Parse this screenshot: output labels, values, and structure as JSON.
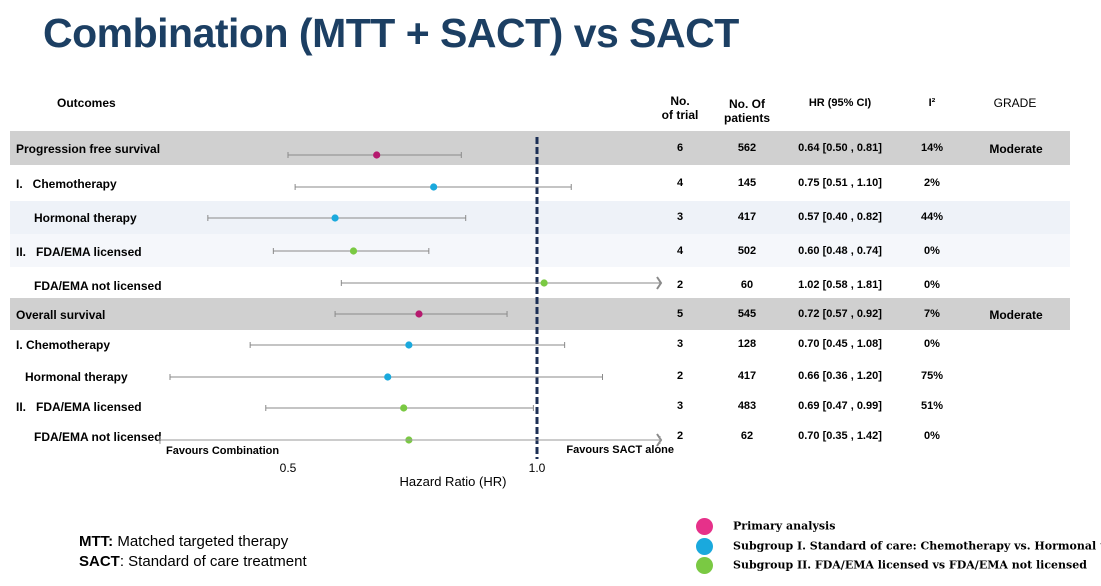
{
  "title": "Combination (MTT + SACT) vs SACT",
  "headers": {
    "outcomes": "Outcomes",
    "trials": [
      "No.",
      "of trial"
    ],
    "patients": [
      "No. Of",
      "patients"
    ],
    "hr": "HR (95% CI)",
    "i2": "I²",
    "grade": "GRADE"
  },
  "colors": {
    "primary": "#b5196e",
    "subgroup1": "#1aa9dd",
    "subgroup2": "#7ac943",
    "band_grey": "#d0d0d0",
    "band_light": "#eef2f8",
    "title": "#1c3f63",
    "ref_line": "#1c2f55"
  },
  "chart_data": {
    "type": "forest",
    "xlabel": "Hazard Ratio (HR)",
    "ref_value": 1.0,
    "tick_labels": [
      "0.5",
      "1.0"
    ],
    "favours_left": "Favours Combination",
    "favours_right": "Favours SACT alone",
    "rows": [
      {
        "label": "Progression free survival",
        "group": "primary",
        "hr": 0.64,
        "lo": 0.5,
        "hi": 0.81,
        "trials": "6",
        "patients": "562",
        "ci_text": "0.64 [0.50 , 0.81]",
        "i2": "14%",
        "grade": "Moderate"
      },
      {
        "label": "I.   Chemotherapy",
        "group": "subgroup1",
        "hr": 0.75,
        "lo": 0.51,
        "hi": 1.1,
        "trials": "4",
        "patients": "145",
        "ci_text": "0.75 [0.51 , 1.10]",
        "i2": "2%",
        "grade": ""
      },
      {
        "label": "Hormonal therapy",
        "group": "subgroup1",
        "hr": 0.57,
        "lo": 0.4,
        "hi": 0.82,
        "trials": "3",
        "patients": "417",
        "ci_text": "0.57 [0.40 , 0.82]",
        "i2": "44%",
        "grade": ""
      },
      {
        "label": "II.   FDA/EMA licensed",
        "group": "subgroup2",
        "hr": 0.6,
        "lo": 0.48,
        "hi": 0.74,
        "trials": "4",
        "patients": "502",
        "ci_text": "0.60 [0.48 , 0.74]",
        "i2": "0%",
        "grade": ""
      },
      {
        "label": "FDA/EMA not licensed",
        "group": "subgroup2",
        "hr": 1.02,
        "lo": 0.58,
        "hi": 1.81,
        "trials": "2",
        "patients": "60",
        "ci_text": "1.02 [0.58 , 1.81]",
        "i2": "0%",
        "grade": ""
      },
      {
        "label": "Overall survival",
        "group": "primary",
        "hr": 0.72,
        "lo": 0.57,
        "hi": 0.92,
        "trials": "5",
        "patients": "545",
        "ci_text": "0.72 [0.57 , 0.92]",
        "i2": "7%",
        "grade": "Moderate"
      },
      {
        "label": "I. Chemotherapy",
        "group": "subgroup1",
        "hr": 0.7,
        "lo": 0.45,
        "hi": 1.08,
        "trials": "3",
        "patients": "128",
        "ci_text": "0.70 [0.45 , 1.08]",
        "i2": "0%",
        "grade": ""
      },
      {
        "label": "Hormonal therapy",
        "group": "subgroup1",
        "hr": 0.66,
        "lo": 0.36,
        "hi": 1.2,
        "trials": "2",
        "patients": "417",
        "ci_text": "0.66 [0.36 , 1.20]",
        "i2": "75%",
        "grade": ""
      },
      {
        "label": "II.   FDA/EMA licensed",
        "group": "subgroup2",
        "hr": 0.69,
        "lo": 0.47,
        "hi": 0.99,
        "trials": "3",
        "patients": "483",
        "ci_text": "0.69 [0.47 , 0.99]",
        "i2": "51%",
        "grade": ""
      },
      {
        "label": "FDA/EMA not licensed",
        "group": "subgroup2",
        "hr": 0.7,
        "lo": 0.35,
        "hi": 1.42,
        "trials": "2",
        "patients": "62",
        "ci_text": "0.70 [0.35 , 1.42]",
        "i2": "0%",
        "grade": ""
      }
    ]
  },
  "footnotes": [
    {
      "abbr": "MTT:",
      "text": " Matched targeted therapy"
    },
    {
      "abbr": "SACT",
      "text": ": Standard of care treatment"
    }
  ],
  "legend": [
    {
      "group": "primary",
      "label": "Primary analysis"
    },
    {
      "group": "subgroup1",
      "label": "Subgroup I. Standard of care: Chemotherapy vs. Hormonal therapy"
    },
    {
      "group": "subgroup2",
      "label": "Subgroup II. FDA/EMA licensed vs FDA/EMA not licensed"
    }
  ]
}
